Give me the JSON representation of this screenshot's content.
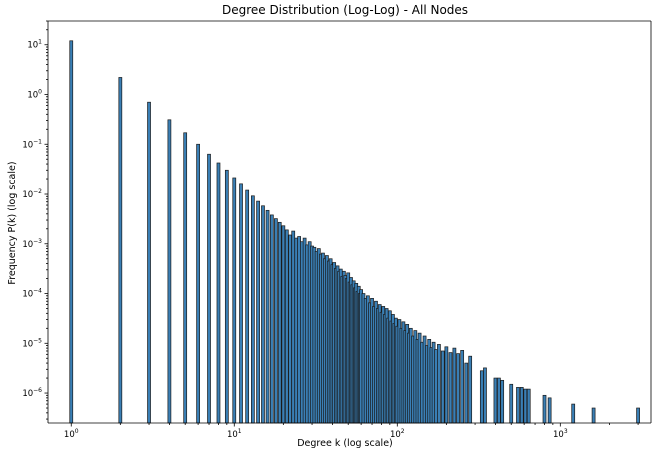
{
  "chart_data": {
    "type": "bar",
    "title": "Degree Distribution (Log-Log) - All Nodes",
    "xlabel": "Degree k (log scale)",
    "ylabel": "Frequency P(k) (log scale)",
    "x_scale": "log",
    "y_scale": "log",
    "xlim": [
      0.72,
      3600
    ],
    "ylim": [
      2.5e-07,
      30
    ],
    "x_ticks": [
      {
        "value": 1,
        "base": "10",
        "exp": "0"
      },
      {
        "value": 10,
        "base": "10",
        "exp": "1"
      },
      {
        "value": 100,
        "base": "10",
        "exp": "2"
      },
      {
        "value": 1000,
        "base": "10",
        "exp": "3"
      }
    ],
    "y_ticks": [
      {
        "value": 1e-06,
        "base": "10",
        "exp": "−6"
      },
      {
        "value": 1e-05,
        "base": "10",
        "exp": "−5"
      },
      {
        "value": 0.0001,
        "base": "10",
        "exp": "−4"
      },
      {
        "value": 0.001,
        "base": "10",
        "exp": "−3"
      },
      {
        "value": 0.01,
        "base": "10",
        "exp": "−2"
      },
      {
        "value": 0.1,
        "base": "10",
        "exp": "−1"
      },
      {
        "value": 1,
        "base": "10",
        "exp": "0"
      },
      {
        "value": 10,
        "base": "10",
        "exp": "1"
      }
    ],
    "bar_color": "#3a7fb5",
    "bar_edge_color": "#1a1a1a",
    "grid": false,
    "legend": "none",
    "points": [
      [
        1,
        12
      ],
      [
        2,
        2.2
      ],
      [
        3,
        0.7
      ],
      [
        4,
        0.31
      ],
      [
        5,
        0.17
      ],
      [
        6,
        0.1
      ],
      [
        7,
        0.063
      ],
      [
        8,
        0.042
      ],
      [
        9,
        0.03
      ],
      [
        10,
        0.021
      ],
      [
        11,
        0.016
      ],
      [
        12,
        0.012
      ],
      [
        13,
        0.0092
      ],
      [
        14,
        0.0072
      ],
      [
        15,
        0.0058
      ],
      [
        16,
        0.0047
      ],
      [
        17,
        0.0038
      ],
      [
        18,
        0.0032
      ],
      [
        19,
        0.0027
      ],
      [
        20,
        0.0023
      ],
      [
        21,
        0.0019
      ],
      [
        22,
        0.0015
      ],
      [
        23,
        0.0018
      ],
      [
        24,
        0.0013
      ],
      [
        25,
        0.0014
      ],
      [
        26,
        0.0011
      ],
      [
        27,
        0.0013
      ],
      [
        28,
        0.00095
      ],
      [
        29,
        0.0011
      ],
      [
        30,
        0.0009
      ],
      [
        31,
        0.00085
      ],
      [
        32,
        0.0007
      ],
      [
        33,
        0.0008
      ],
      [
        34,
        0.00062
      ],
      [
        35,
        0.00065
      ],
      [
        36,
        0.0005
      ],
      [
        37,
        0.00058
      ],
      [
        38,
        0.00045
      ],
      [
        39,
        0.0005
      ],
      [
        40,
        0.00038
      ],
      [
        41,
        0.00042
      ],
      [
        42,
        0.00032
      ],
      [
        43,
        0.00036
      ],
      [
        44,
        0.00028
      ],
      [
        45,
        0.00031
      ],
      [
        46,
        0.00022
      ],
      [
        47,
        0.00028
      ],
      [
        48,
        0.00023
      ],
      [
        49,
        0.0002
      ],
      [
        50,
        0.00026
      ],
      [
        51,
        0.00017
      ],
      [
        52,
        0.00021
      ],
      [
        53,
        0.00015
      ],
      [
        54,
        0.00018
      ],
      [
        55,
        0.00013
      ],
      [
        56,
        0.00016
      ],
      [
        57,
        0.00011
      ],
      [
        58,
        0.00014
      ],
      [
        59,
        0.0001
      ],
      [
        60,
        0.00012
      ],
      [
        62,
        0.0001
      ],
      [
        64,
        8e-05
      ],
      [
        66,
        9e-05
      ],
      [
        68,
        6.5e-05
      ],
      [
        70,
        8e-05
      ],
      [
        72,
        5.5e-05
      ],
      [
        74,
        7e-05
      ],
      [
        76,
        5e-05
      ],
      [
        78,
        6e-05
      ],
      [
        80,
        4.2e-05
      ],
      [
        82,
        5.5e-05
      ],
      [
        84,
        3.8e-05
      ],
      [
        86,
        5e-05
      ],
      [
        88,
        3.2e-05
      ],
      [
        90,
        4.5e-05
      ],
      [
        92,
        2.8e-05
      ],
      [
        94,
        3.8e-05
      ],
      [
        96,
        2.5e-05
      ],
      [
        98,
        3.2e-05
      ],
      [
        100,
        2.2e-05
      ],
      [
        103,
        3e-05
      ],
      [
        106,
        2e-05
      ],
      [
        109,
        2.7e-05
      ],
      [
        112,
        1.8e-05
      ],
      [
        115,
        2.4e-05
      ],
      [
        118,
        1.6e-05
      ],
      [
        121,
        2e-05
      ],
      [
        125,
        1.4e-05
      ],
      [
        129,
        1.8e-05
      ],
      [
        133,
        1.2e-05
      ],
      [
        137,
        1.6e-05
      ],
      [
        142,
        1.05e-05
      ],
      [
        147,
        1.4e-05
      ],
      [
        152,
        9e-06
      ],
      [
        157,
        1.2e-05
      ],
      [
        162,
        8.2e-06
      ],
      [
        167,
        1.05e-05
      ],
      [
        173,
        7.5e-06
      ],
      [
        180,
        9.5e-06
      ],
      [
        190,
        7e-06
      ],
      [
        200,
        8.5e-06
      ],
      [
        212,
        6.5e-06
      ],
      [
        224,
        8e-06
      ],
      [
        236,
        6.2e-06
      ],
      [
        250,
        7.2e-06
      ],
      [
        265,
        4e-06
      ],
      [
        280,
        5.5e-06
      ],
      [
        330,
        2.8e-06
      ],
      [
        345,
        3.2e-06
      ],
      [
        400,
        2e-06
      ],
      [
        420,
        2e-06
      ],
      [
        440,
        1.8e-06
      ],
      [
        500,
        1.5e-06
      ],
      [
        550,
        1.3e-06
      ],
      [
        580,
        1.3e-06
      ],
      [
        610,
        1.2e-06
      ],
      [
        640,
        1.2e-06
      ],
      [
        800,
        9e-07
      ],
      [
        860,
        8e-07
      ],
      [
        1200,
        6e-07
      ],
      [
        1600,
        5e-07
      ],
      [
        3000,
        5e-07
      ]
    ]
  }
}
